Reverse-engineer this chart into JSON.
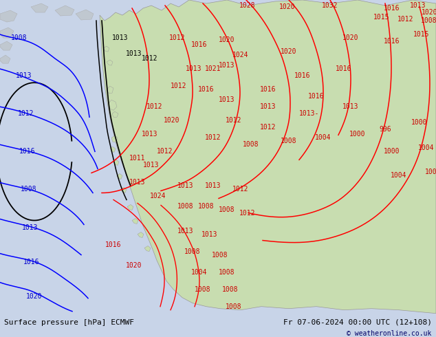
{
  "title_left": "Surface pressure [hPa] ECMWF",
  "title_right": "Fr 07-06-2024 00:00 UTC (12+108)",
  "copyright": "© weatheronline.co.uk",
  "bg_color": "#c8d4e8",
  "land_color_light": "#c8ddb0",
  "land_color_dark": "#a8c888",
  "figsize": [
    6.34,
    4.9
  ],
  "dpi": 100,
  "bottom_bar_color": "#ffffff",
  "font_size_bottom": 8,
  "font_size_labels": 7,
  "map_bg": "#c8d4e8",
  "contour_red": "#cc0000",
  "contour_blue": "#0000cc",
  "contour_black": "#000000"
}
